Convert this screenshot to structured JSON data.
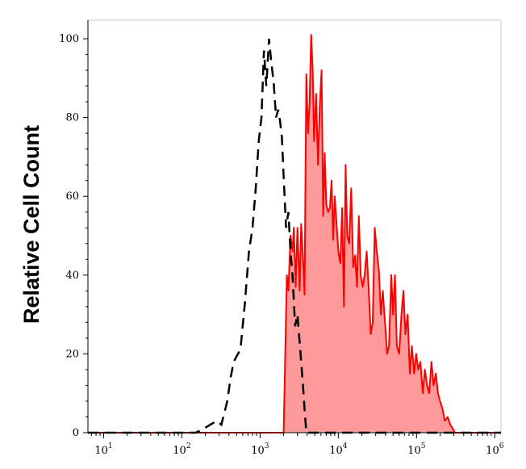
{
  "chart_data": {
    "type": "area",
    "ylabel": "Relative Cell Count",
    "xscale": "log",
    "xlim": [
      6.3,
      1200000
    ],
    "ylim": [
      0,
      100
    ],
    "x_ticks": [
      {
        "base": "10",
        "exp": "1",
        "value": 10
      },
      {
        "base": "10",
        "exp": "2",
        "value": 100
      },
      {
        "base": "10",
        "exp": "3",
        "value": 1000
      },
      {
        "base": "10",
        "exp": "4",
        "value": 10000
      },
      {
        "base": "10",
        "exp": "5",
        "value": 100000
      },
      {
        "base": "10",
        "exp": "6",
        "value": 1000000
      }
    ],
    "y_ticks": [
      "0",
      "20",
      "40",
      "60",
      "80",
      "100"
    ],
    "grid": false,
    "colors": {
      "stained_line": "#ff0000",
      "stained_fill": "#ff9a9a",
      "control_line": "#000000"
    },
    "series": [
      {
        "style": "dashed",
        "x": [
          6.3,
          150,
          190,
          230,
          280,
          320,
          380,
          420,
          460,
          520,
          560,
          640,
          720,
          800,
          880,
          960,
          1040,
          1120,
          1200,
          1300,
          1390,
          1490,
          1600,
          1700,
          1800,
          1900,
          2000,
          2150,
          2300,
          2450,
          2600,
          2800,
          3000,
          3200,
          3500,
          3700,
          3900,
          1200000
        ],
        "y": [
          0,
          0,
          1,
          2,
          3,
          2,
          8,
          14,
          18,
          20,
          21,
          33,
          46,
          52,
          62,
          74,
          80,
          97,
          88,
          100,
          94,
          89,
          80,
          82,
          79,
          75,
          65,
          52,
          56,
          46,
          40,
          27,
          30,
          23,
          13,
          6,
          0,
          0
        ]
      },
      {
        "style": "solid-filled",
        "x": [
          6.3,
          1000,
          2000,
          2200,
          2300,
          2450,
          2600,
          2700,
          2850,
          3000,
          3200,
          3350,
          3500,
          3700,
          3900,
          4100,
          4300,
          4500,
          4700,
          4900,
          5200,
          5500,
          5800,
          6100,
          6400,
          6700,
          7000,
          7400,
          7800,
          8200,
          8600,
          9000,
          9500,
          10000,
          10600,
          11200,
          11800,
          12400,
          13000,
          13800,
          14600,
          15500,
          16400,
          17300,
          18300,
          19300,
          20500,
          21700,
          23000,
          24400,
          25900,
          27500,
          29200,
          31000,
          33000,
          35000,
          37000,
          39500,
          42000,
          44500,
          47500,
          50000,
          53000,
          56000,
          60000,
          64000,
          68000,
          72000,
          77000,
          82000,
          87000,
          93000,
          99000,
          105000,
          112000,
          120000,
          128000,
          136000,
          145000,
          155000,
          165000,
          176000,
          188000,
          200000,
          215000,
          230000,
          250000,
          270000,
          290000,
          310000,
          330000,
          1200000
        ],
        "y": [
          0,
          0,
          0,
          40,
          36,
          50,
          46,
          52,
          37,
          52,
          36,
          53,
          46,
          35,
          91,
          76,
          84,
          101,
          92,
          74,
          86,
          68,
          83,
          92,
          55,
          71,
          58,
          56,
          57,
          64,
          49,
          60,
          53,
          46,
          43,
          57,
          32,
          68,
          50,
          48,
          62,
          42,
          45,
          37,
          55,
          40,
          37,
          40,
          46,
          37,
          25,
          28,
          52,
          46,
          41,
          30,
          36,
          28,
          20,
          22,
          40,
          30,
          40,
          22,
          20,
          30,
          36,
          25,
          30,
          15,
          22,
          15,
          20,
          16,
          18,
          10,
          16,
          12,
          10,
          18,
          12,
          15,
          10,
          8,
          6,
          3,
          4,
          2,
          1,
          0,
          0,
          0
        ]
      }
    ]
  }
}
